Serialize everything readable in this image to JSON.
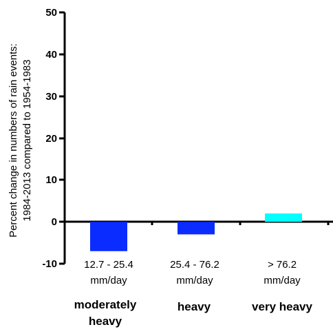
{
  "chart_data": {
    "type": "bar",
    "title": "",
    "ylabel_lines": [
      "Percent change in numbers of rain events:",
      "1984-2013 compared to 1954-1983"
    ],
    "xlabel": "",
    "ylim": [
      -10,
      50
    ],
    "yticks": [
      "-10",
      "0",
      "10",
      "20",
      "30",
      "40",
      "50"
    ],
    "categories": [
      {
        "range_line1": "12.7 - 25.4",
        "range_line2": "mm/day",
        "group_line1": "moderately",
        "group_line2": "heavy",
        "value": -7,
        "color": "#0a2cff"
      },
      {
        "range_line1": "25.4 - 76.2",
        "range_line2": "mm/day",
        "group_line1": "heavy",
        "group_line2": "",
        "value": -3,
        "color": "#0a2cff"
      },
      {
        "range_line1": "> 76.2",
        "range_line2": "mm/day",
        "group_line1": "very heavy",
        "group_line2": "",
        "value": 2,
        "color": "#00ffff"
      }
    ],
    "grid": false,
    "legend": "none"
  }
}
